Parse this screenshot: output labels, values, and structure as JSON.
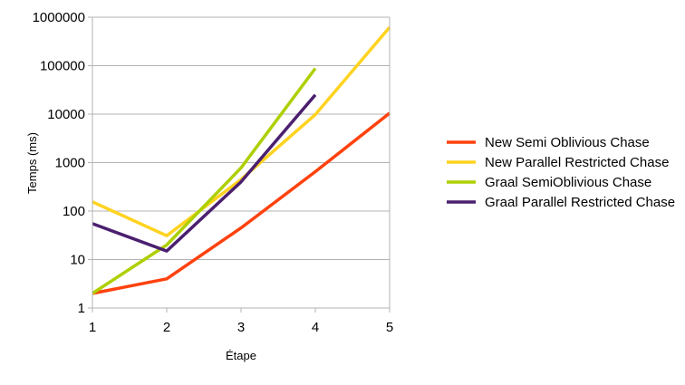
{
  "chart_data": {
    "type": "line",
    "xlabel": "Étape",
    "ylabel": "Temps (ms)",
    "y_scale": "log",
    "ylim": [
      1,
      1000000
    ],
    "xlim": [
      1,
      5
    ],
    "x_ticks": [
      "1",
      "2",
      "3",
      "4",
      "5"
    ],
    "y_ticks": [
      "1",
      "10",
      "100",
      "1000",
      "10000",
      "100000",
      "1000000"
    ],
    "grid": "horizontal",
    "legend_position": "right",
    "series": [
      {
        "name": "New Semi Oblivious Chase",
        "color": "#ff420e",
        "x": [
          1,
          2,
          3,
          4,
          5
        ],
        "values": [
          2,
          4,
          45,
          650,
          10500
        ]
      },
      {
        "name": "New Parallel Restricted Chase",
        "color": "#ffd320",
        "x": [
          1,
          2,
          3,
          4,
          5
        ],
        "values": [
          155,
          31,
          450,
          9800,
          620000
        ]
      },
      {
        "name": "Graal SemiOblivious Chase",
        "color": "#aecf00",
        "x": [
          1,
          2,
          3,
          4
        ],
        "values": [
          2,
          20,
          780,
          88000
        ]
      },
      {
        "name": "Graal Parallel Restricted Chase",
        "color": "#4b1f6f",
        "x": [
          1,
          2,
          3,
          4
        ],
        "values": [
          55,
          15,
          400,
          25000
        ]
      }
    ]
  }
}
